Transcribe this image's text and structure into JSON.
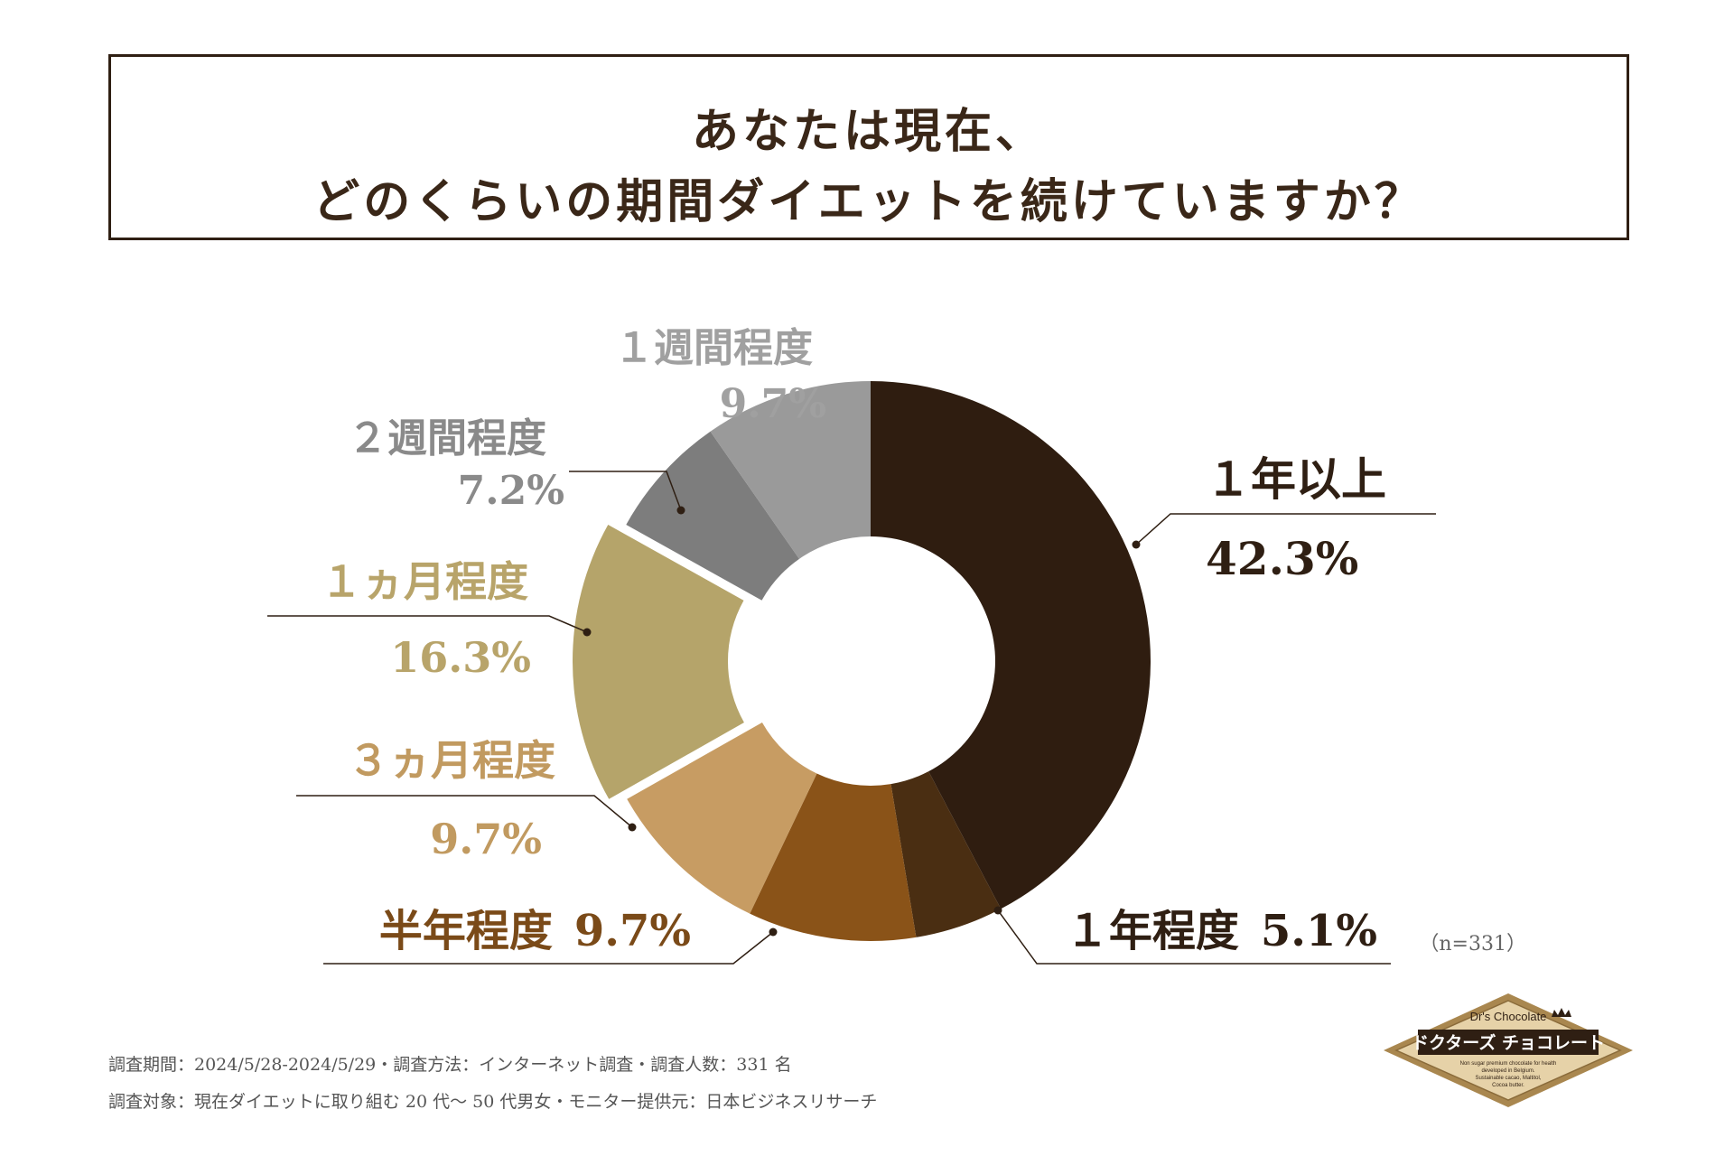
{
  "title": {
    "line1": "あなたは現在、",
    "line2": "どのくらいの期間ダイエットを続けていますか？"
  },
  "chart_data": {
    "type": "pie",
    "subtype": "donut",
    "title": "あなたは現在、どのくらいの期間ダイエットを続けていますか？",
    "start": "12 o'clock",
    "direction": "clockwise",
    "sample_label": "（n=331）",
    "slices": [
      {
        "id": "over-1-year",
        "label": "１年以上",
        "value": 42.3,
        "value_label": "42.3%",
        "color": "#2f1d10",
        "label_color": "#2f1f13"
      },
      {
        "id": "about-1-year",
        "label": "１年程度",
        "value": 5.1,
        "value_label": "5.1%",
        "color": "#4a2e12",
        "label_color": "#2f1f13"
      },
      {
        "id": "half-year",
        "label": "半年程度",
        "value": 9.7,
        "value_label": "9.7%",
        "color": "#8a5318",
        "label_color": "#7a4a18"
      },
      {
        "id": "about-3-months",
        "label": "３ヵ月程度",
        "value": 9.7,
        "value_label": "9.7%",
        "color": "#c79c63",
        "label_color": "#c19a60"
      },
      {
        "id": "about-1-month",
        "label": "１ヵ月程度",
        "value": 16.3,
        "value_label": "16.3%",
        "color": "#b5a46a",
        "label_color": "#b8a46a",
        "exploded": true
      },
      {
        "id": "about-2-weeks",
        "label": "２週間程度",
        "value": 7.2,
        "value_label": "7.2%",
        "color": "#7d7d7d",
        "label_color": "#8a8a8a"
      },
      {
        "id": "about-1-week",
        "label": "１週間程度",
        "value": 9.7,
        "value_label": "9.7%",
        "color": "#9a9a9a",
        "label_color": "#a0a0a0"
      }
    ]
  },
  "footer": {
    "line1": "調査期間：2024/5/28-2024/5/29・調査方法：インターネット調査・調査人数：331 名",
    "line2": "調査対象：現在ダイエットに取り組む 20 代〜 50 代男女・モニター提供元：日本ビジネスリサーチ"
  },
  "logo": {
    "brand_en": "Dr's Chocolate",
    "brand_jp": "ドクターズ チョコレート",
    "tagline": [
      "Non sugar premium chocolate for health",
      "developed in Belgium.",
      "Sustainable cacao, Maltitol,",
      "Cocoa butter."
    ]
  }
}
